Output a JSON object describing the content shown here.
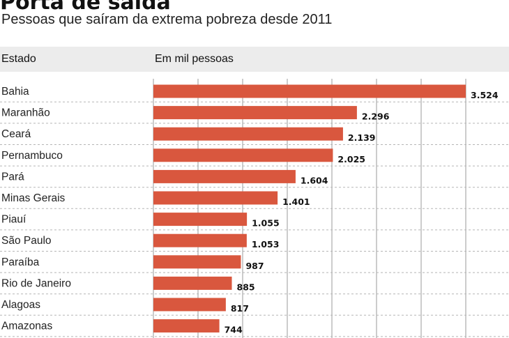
{
  "header": {
    "title": "Porta de saída",
    "subtitle": "Pessoas que saíram da extrema pobreza desde 2011",
    "col_state": "Estado",
    "col_unit": "Em mil pessoas"
  },
  "colors": {
    "bar": "#d9573e",
    "band": "#ececec",
    "grid": "#9a9a9a"
  },
  "chart_data": {
    "type": "bar",
    "orientation": "horizontal",
    "title": "Porta de saída",
    "subtitle": "Pessoas que saíram da extrema pobreza desde 2011",
    "xlabel": "Em mil pessoas",
    "ylabel": "Estado",
    "categories": [
      "Bahia",
      "Maranhão",
      "Ceará",
      "Pernambuco",
      "Pará",
      "Minas Gerais",
      "Piauí",
      "São Paulo",
      "Paraíba",
      "Rio de Janeiro",
      "Alagoas",
      "Amazonas"
    ],
    "values": [
      3524,
      2296,
      2139,
      2025,
      1604,
      1401,
      1055,
      1053,
      987,
      885,
      817,
      744
    ],
    "value_labels": [
      "3.524",
      "2.296",
      "2.139",
      "2.025",
      "1.604",
      "1.401",
      "1.055",
      "1.053",
      "987",
      "885",
      "817",
      "744"
    ],
    "xlim": [
      0,
      3600
    ],
    "grid": true
  }
}
